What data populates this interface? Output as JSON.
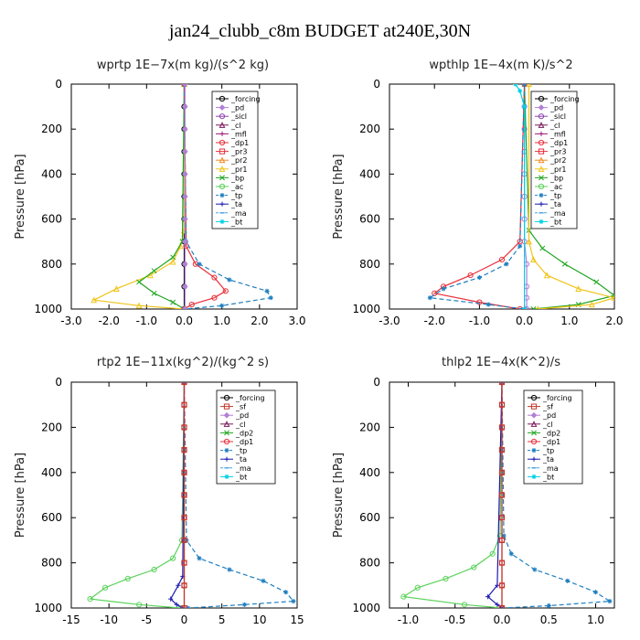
{
  "figure_title": "jan24_clubb_c8m  BUDGET at240E,30N",
  "chart_data": [
    {
      "type": "line",
      "title": "wprtp   1E−7x(m kg)/(s^2 kg)",
      "ylabel": "Pressure [hPa]",
      "xlim": [
        -3.0,
        3.0
      ],
      "ylim": [
        1000,
        0
      ],
      "xticks": [
        "-3.0",
        "-2.0",
        "-1.0",
        "0.0",
        "1.0",
        "2.0",
        "3.0"
      ],
      "xtick_values": [
        -3,
        -2,
        -1,
        0,
        1,
        2,
        3
      ],
      "yticks": [
        "0",
        "200",
        "400",
        "600",
        "800",
        "1000"
      ],
      "ytick_values": [
        0,
        200,
        400,
        600,
        800,
        1000
      ],
      "legend": [
        "_forcing",
        "_pd",
        "_sicl",
        "_cl",
        "_mfl",
        "_dp1",
        "_pr3",
        "_pr2",
        "_pr1",
        "_bp",
        "_ac",
        "_tp",
        "_ta",
        "_ma",
        "_bt"
      ],
      "series": [
        {
          "name": "_forcing",
          "color": "#000000",
          "marker": "circle",
          "dash": "",
          "x": [
            0.0,
            0.0,
            0.0,
            0.0,
            0.0,
            0.0,
            0.0,
            0.0,
            0.0,
            0.0,
            0.0
          ],
          "y": [
            0,
            100,
            200,
            300,
            400,
            500,
            600,
            700,
            800,
            900,
            1000
          ]
        },
        {
          "name": "_pr1",
          "color": "#f0c419",
          "marker": "triangle",
          "dash": "",
          "x": [
            0.0,
            0.0,
            -0.1,
            -0.3,
            -0.9,
            -1.8,
            -2.4,
            -1.2,
            0.0
          ],
          "y": [
            0,
            650,
            720,
            790,
            850,
            910,
            960,
            985,
            1000
          ]
        },
        {
          "name": "_bp",
          "color": "#1fa51f",
          "marker": "x",
          "dash": "",
          "x": [
            0.0,
            -0.05,
            -0.3,
            -0.8,
            -1.2,
            -0.8,
            -0.3,
            0.0
          ],
          "y": [
            0,
            700,
            770,
            830,
            880,
            930,
            970,
            1000
          ]
        },
        {
          "name": "_dp1",
          "color": "#e8303a",
          "marker": "circle",
          "dash": "",
          "x": [
            0.0,
            0.05,
            0.3,
            0.8,
            1.1,
            0.8,
            0.2,
            0.0
          ],
          "y": [
            0,
            720,
            800,
            860,
            920,
            950,
            980,
            1000
          ]
        },
        {
          "name": "_tp",
          "color": "#1f7fc0",
          "marker": "star",
          "dash": "5,3",
          "x": [
            0.0,
            0.05,
            0.4,
            1.2,
            2.2,
            2.3,
            1.0,
            0.0
          ],
          "y": [
            0,
            700,
            800,
            870,
            920,
            950,
            985,
            1000
          ]
        },
        {
          "name": "_pd",
          "color": "#b27fd6",
          "marker": "diamond",
          "dash": "",
          "x": [
            0.02,
            0.02,
            0.02,
            0.02,
            0.02,
            0.02,
            0.02,
            0.02,
            0.02,
            0.02,
            0.02
          ],
          "y": [
            0,
            100,
            200,
            300,
            400,
            500,
            600,
            700,
            800,
            900,
            1000
          ]
        }
      ]
    },
    {
      "type": "line",
      "title": "wpthlp   1E−4x(m K)/s^2",
      "ylabel": "Pressure [hPa]",
      "xlim": [
        -3.0,
        2.0
      ],
      "ylim": [
        1000,
        0
      ],
      "xticks": [
        "-3.0",
        "-2.0",
        "-1.0",
        "0.0",
        "1.0",
        "2.0"
      ],
      "xtick_values": [
        -3,
        -2,
        -1,
        0,
        1,
        2
      ],
      "yticks": [
        "0",
        "200",
        "400",
        "600",
        "800",
        "1000"
      ],
      "ytick_values": [
        0,
        200,
        400,
        600,
        800,
        1000
      ],
      "legend": [
        "_forcing",
        "_pd",
        "_sicl",
        "_cl",
        "_mfl",
        "_dp1",
        "_pr3",
        "_pr2",
        "_pr1",
        "_bp",
        "_ac",
        "_tp",
        "_ta",
        "_ma",
        "_bt"
      ],
      "series": [
        {
          "name": "_forcing",
          "color": "#b27fd6",
          "marker": "circle",
          "dash": "",
          "x": [
            0.0,
            0.0,
            0.0,
            0.0,
            0.0,
            0.0,
            0.0,
            0.0,
            0.05,
            0.05,
            0.05,
            0.05
          ],
          "y": [
            0,
            100,
            200,
            300,
            400,
            500,
            600,
            700,
            800,
            900,
            950,
            1000
          ]
        },
        {
          "name": "_bp",
          "color": "#1fa51f",
          "marker": "x",
          "dash": "",
          "x": [
            0.0,
            0.1,
            0.4,
            0.9,
            1.6,
            2.0,
            1.2,
            0.2
          ],
          "y": [
            0,
            650,
            730,
            800,
            880,
            940,
            980,
            1000
          ]
        },
        {
          "name": "_pr1",
          "color": "#f0c419",
          "marker": "triangle",
          "dash": "",
          "x": [
            0.1,
            0.1,
            0.2,
            0.5,
            1.2,
            2.0,
            1.5,
            0.3
          ],
          "y": [
            0,
            700,
            780,
            850,
            910,
            950,
            980,
            1000
          ]
        },
        {
          "name": "_dp1",
          "color": "#e8303a",
          "marker": "circle",
          "dash": "",
          "x": [
            0.0,
            -0.1,
            -0.5,
            -1.2,
            -1.8,
            -2.0,
            -1.0,
            -0.1
          ],
          "y": [
            0,
            700,
            780,
            850,
            900,
            930,
            970,
            1000
          ]
        },
        {
          "name": "_tp",
          "color": "#1f7fc0",
          "marker": "star",
          "dash": "5,3",
          "x": [
            0.0,
            -0.1,
            -0.4,
            -1.0,
            -1.8,
            -2.1,
            -0.8,
            0.0
          ],
          "y": [
            0,
            720,
            800,
            860,
            910,
            950,
            980,
            1000
          ]
        },
        {
          "name": "_bt",
          "color": "#00d0e8",
          "marker": "star",
          "dash": "",
          "x": [
            -0.2,
            -0.1,
            0.0,
            0.0
          ],
          "y": [
            0,
            30,
            100,
            1000
          ]
        }
      ]
    },
    {
      "type": "line",
      "title": "rtp2   1E−11x(kg^2)/(kg^2 s)",
      "ylabel": "Pressure [hPa]",
      "xlim": [
        -15,
        15
      ],
      "ylim": [
        1000,
        0
      ],
      "xticks": [
        "-15",
        "-10",
        "-5",
        "0",
        "5",
        "10",
        "15"
      ],
      "xtick_values": [
        -15,
        -10,
        -5,
        0,
        5,
        10,
        15
      ],
      "yticks": [
        "0",
        "200",
        "400",
        "600",
        "800",
        "1000"
      ],
      "ytick_values": [
        0,
        200,
        400,
        600,
        800,
        1000
      ],
      "legend": [
        "_forcing",
        "_sf",
        "_pd",
        "_cl",
        "_dp2",
        "_dp1",
        "_tp",
        "_ta",
        "_ma",
        "_bt"
      ],
      "series": [
        {
          "name": "_dp1",
          "color": "#5ad25a",
          "marker": "circle",
          "dash": "",
          "x": [
            0.0,
            -0.3,
            -1.5,
            -4.0,
            -7.5,
            -10.5,
            -12.5,
            -6.0,
            -0.5
          ],
          "y": [
            0,
            700,
            780,
            830,
            870,
            910,
            960,
            985,
            1000
          ]
        },
        {
          "name": "_tp",
          "color": "#1f7fc0",
          "marker": "star",
          "dash": "5,3",
          "x": [
            0.0,
            0.3,
            2.0,
            6.0,
            10.5,
            13.5,
            14.5,
            8.0,
            0.5
          ],
          "y": [
            0,
            700,
            780,
            830,
            880,
            930,
            970,
            985,
            1000
          ]
        },
        {
          "name": "_ta",
          "color": "#1a1ab0",
          "marker": "plus",
          "dash": "",
          "x": [
            0.0,
            -0.2,
            -0.8,
            -1.8,
            -1.0,
            -0.2
          ],
          "y": [
            0,
            860,
            900,
            960,
            985,
            1000
          ]
        },
        {
          "name": "_forcing",
          "color": "#e8303a",
          "marker": "circle",
          "dash": "",
          "x": [
            0.0,
            0.0,
            0.0,
            0.0,
            0.0,
            0.0,
            0.0,
            0.0,
            0.0,
            0.0,
            0.0
          ],
          "y": [
            0,
            100,
            200,
            300,
            400,
            500,
            600,
            700,
            800,
            900,
            1000
          ]
        },
        {
          "name": "_sf",
          "color": "#c0392b",
          "marker": "square",
          "dash": "",
          "x": [
            0.0,
            0.0,
            0.0,
            0.0,
            0.0,
            0.0,
            0.0,
            0.0,
            0.0,
            0.0,
            0.0
          ],
          "y": [
            0,
            100,
            200,
            300,
            400,
            500,
            600,
            700,
            800,
            900,
            1000
          ]
        }
      ]
    },
    {
      "type": "line",
      "title": "thlp2   1E−4x(K^2)/s",
      "ylabel": "Pressure [hPa]",
      "xlim": [
        -1.2,
        1.2
      ],
      "ylim": [
        1000,
        0
      ],
      "xticks": [
        "-1.0",
        "-0.5",
        "0.0",
        "0.5",
        "1.0"
      ],
      "xtick_values": [
        -1.0,
        -0.5,
        0.0,
        0.5,
        1.0
      ],
      "yticks": [
        "0",
        "200",
        "400",
        "600",
        "800",
        "1000"
      ],
      "ytick_values": [
        0,
        200,
        400,
        600,
        800,
        1000
      ],
      "legend": [
        "_forcing",
        "_sf",
        "_pd",
        "_cl",
        "_dp2",
        "_dp1",
        "_tp",
        "_ta",
        "_ma",
        "_bt"
      ],
      "series": [
        {
          "name": "_dp1",
          "color": "#5ad25a",
          "marker": "circle",
          "dash": "",
          "x": [
            0.0,
            -0.02,
            -0.1,
            -0.3,
            -0.6,
            -0.9,
            -1.05,
            -0.4,
            0.0
          ],
          "y": [
            0,
            680,
            760,
            820,
            870,
            910,
            950,
            985,
            1000
          ]
        },
        {
          "name": "_tp",
          "color": "#1f7fc0",
          "marker": "star",
          "dash": "5,3",
          "x": [
            0.0,
            0.02,
            0.1,
            0.35,
            0.7,
            1.0,
            1.15,
            0.5,
            0.0
          ],
          "y": [
            0,
            680,
            760,
            830,
            880,
            930,
            970,
            990,
            1000
          ]
        },
        {
          "name": "_ta",
          "color": "#1a1ab0",
          "marker": "plus",
          "dash": "",
          "x": [
            0.0,
            -0.05,
            -0.15,
            -0.05,
            0.0
          ],
          "y": [
            0,
            900,
            950,
            985,
            1000
          ]
        },
        {
          "name": "_forcing",
          "color": "#e8303a",
          "marker": "circle",
          "dash": "",
          "x": [
            0.0,
            0.0,
            0.0,
            0.0,
            0.0,
            0.0,
            0.0,
            0.0,
            0.0,
            0.0,
            0.0
          ],
          "y": [
            0,
            100,
            200,
            300,
            400,
            500,
            600,
            700,
            800,
            900,
            1000
          ]
        },
        {
          "name": "_sf",
          "color": "#c0392b",
          "marker": "square",
          "dash": "",
          "x": [
            0.0,
            0.0,
            0.0,
            0.0,
            0.0,
            0.0,
            0.0,
            0.0,
            0.0,
            0.0,
            0.0
          ],
          "y": [
            0,
            100,
            200,
            300,
            400,
            500,
            600,
            700,
            800,
            900,
            1000
          ]
        }
      ]
    }
  ],
  "legend_styles": {
    "_forcing": {
      "color": "#000000",
      "marker": "circle"
    },
    "_pd": {
      "color": "#b27fd6",
      "marker": "diamond"
    },
    "_sicl": {
      "color": "#8e44ad",
      "marker": "circle"
    },
    "_cl": {
      "color": "#7b1a5a",
      "marker": "triangle"
    },
    "_mfl": {
      "color": "#a0187a",
      "marker": "plus"
    },
    "_dp1": {
      "color": "#e8303a",
      "marker": "circle"
    },
    "_pr3": {
      "color": "#e8303a",
      "marker": "square"
    },
    "_pr2": {
      "color": "#f08a24",
      "marker": "triangle"
    },
    "_pr1": {
      "color": "#f0c419",
      "marker": "triangle"
    },
    "_bp": {
      "color": "#1fa51f",
      "marker": "x"
    },
    "_ac": {
      "color": "#5ad25a",
      "marker": "circle"
    },
    "_tp": {
      "color": "#1f7fc0",
      "marker": "star"
    },
    "_ta": {
      "color": "#1a1ab0",
      "marker": "plus"
    },
    "_ma": {
      "color": "#4aa3df",
      "marker": "dash"
    },
    "_bt": {
      "color": "#00d0e8",
      "marker": "star"
    },
    "_sf": {
      "color": "#c0392b",
      "marker": "square"
    },
    "_dp2": {
      "color": "#1fa51f",
      "marker": "x"
    }
  }
}
